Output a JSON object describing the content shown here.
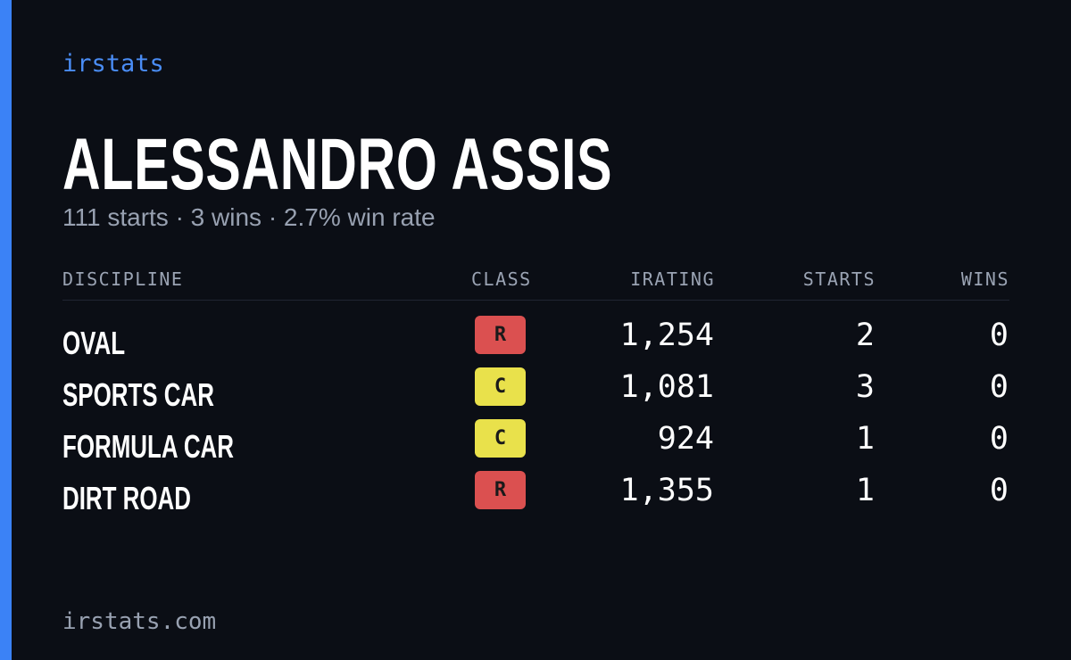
{
  "header": {
    "brand": "irstats",
    "name": "ALESSANDRO ASSIS",
    "subtitle": "111 starts · 3 wins · 2.7% win rate"
  },
  "table": {
    "columns": [
      "DISCIPLINE",
      "CLASS",
      "IRATING",
      "STARTS",
      "WINS"
    ],
    "rows": [
      {
        "discipline": "OVAL",
        "class": "R",
        "class_color": "#db5050",
        "irating": "1,254",
        "starts": "2",
        "wins": "0"
      },
      {
        "discipline": "SPORTS CAR",
        "class": "C",
        "class_color": "#e9e14b",
        "irating": "1,081",
        "starts": "3",
        "wins": "0"
      },
      {
        "discipline": "FORMULA CAR",
        "class": "C",
        "class_color": "#e9e14b",
        "irating": "924",
        "starts": "1",
        "wins": "0"
      },
      {
        "discipline": "DIRT ROAD",
        "class": "R",
        "class_color": "#db5050",
        "irating": "1,355",
        "starts": "1",
        "wins": "0"
      }
    ]
  },
  "footer": {
    "url": "irstats.com"
  }
}
